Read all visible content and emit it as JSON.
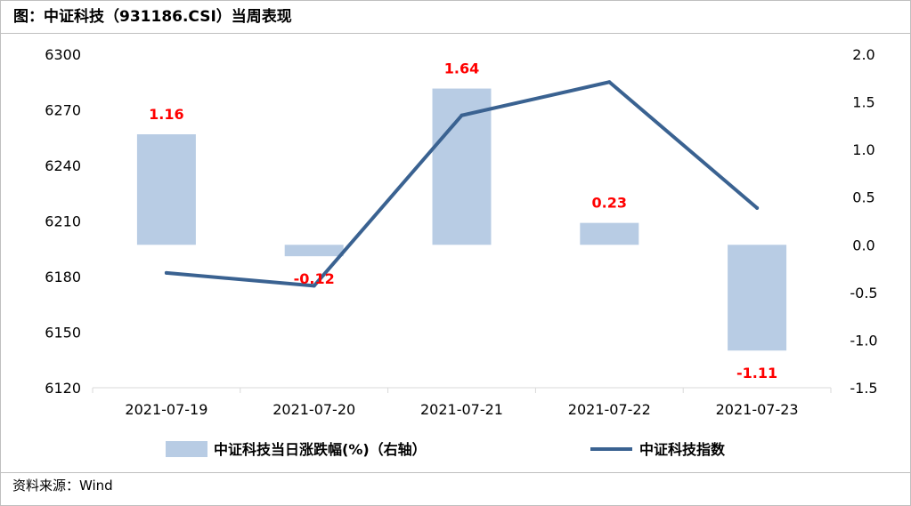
{
  "title": "图：中证科技（931186.CSI）当周表现",
  "source": "资料来源：Wind",
  "chart_data": {
    "type": "bar+line",
    "categories": [
      "2021-07-19",
      "2021-07-20",
      "2021-07-21",
      "2021-07-22",
      "2021-07-23"
    ],
    "series": [
      {
        "name": "中证科技当日涨跌幅(%)（右轴）",
        "type": "bar",
        "axis": "right",
        "values": [
          1.16,
          -0.12,
          1.64,
          0.23,
          -1.11
        ],
        "labels": [
          "1.16",
          "-0.12",
          "1.64",
          "0.23",
          "-1.11"
        ],
        "color": "#b8cce4"
      },
      {
        "name": "中证科技指数",
        "type": "line",
        "axis": "left",
        "values": [
          6182,
          6175,
          6267,
          6285,
          6217
        ],
        "color": "#3a6291"
      }
    ],
    "y_left": {
      "min": 6120,
      "max": 6300,
      "ticks": [
        "6120",
        "6150",
        "6180",
        "6210",
        "6240",
        "6270",
        "6300"
      ]
    },
    "y_right": {
      "min": -1.5,
      "max": 2.0,
      "ticks": [
        "-1.5",
        "-1.0",
        "-0.5",
        "0.0",
        "0.5",
        "1.0",
        "1.5",
        "2.0"
      ]
    },
    "label_color": "#ff0000",
    "legend_position": "bottom",
    "grid": false
  }
}
